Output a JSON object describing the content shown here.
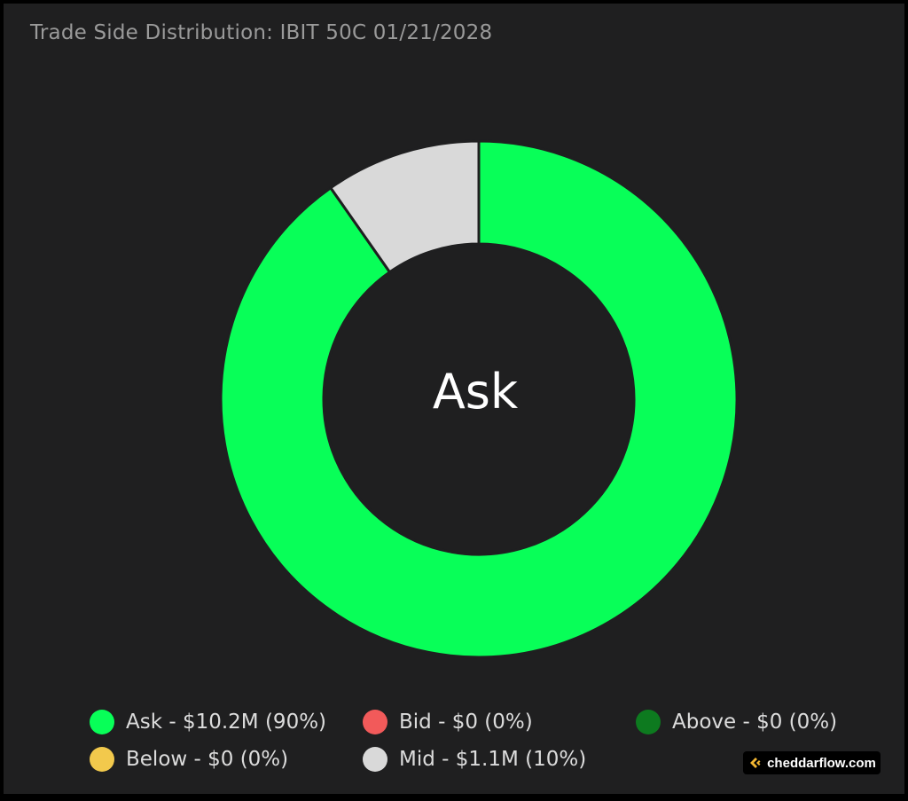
{
  "colors": {
    "ask": "#08ff58",
    "bid": "#f25a5a",
    "above": "#0d7a1f",
    "below": "#f2c94c",
    "mid": "#d9d9d9"
  },
  "center_label": "Ask",
  "brand": {
    "text": "cheddarflow.com",
    "icon": "cheddarflow-logo-icon"
  },
  "chart_data": {
    "type": "pie",
    "subtype": "donut",
    "title": "Trade Side Distribution: IBIT 50C 01/21/2028",
    "slices": [
      {
        "name": "Ask",
        "value": 10.2,
        "percent": 90,
        "color": "#08ff58"
      },
      {
        "name": "Mid",
        "value": 1.1,
        "percent": 10,
        "color": "#d9d9d9"
      },
      {
        "name": "Bid",
        "value": 0,
        "percent": 0,
        "color": "#f25a5a"
      },
      {
        "name": "Above",
        "value": 0,
        "percent": 0,
        "color": "#0d7a1f"
      },
      {
        "name": "Below",
        "value": 0,
        "percent": 0,
        "color": "#f2c94c"
      }
    ],
    "legend": [
      {
        "label": "Ask - $10.2M (90%)",
        "color": "#08ff58"
      },
      {
        "label": "Bid - $0 (0%)",
        "color": "#f25a5a"
      },
      {
        "label": "Above - $0 (0%)",
        "color": "#0d7a1f"
      },
      {
        "label": "Below - $0 (0%)",
        "color": "#f2c94c"
      },
      {
        "label": "Mid - $1.1M (10%)",
        "color": "#d9d9d9"
      }
    ],
    "legend_position": "bottom"
  }
}
